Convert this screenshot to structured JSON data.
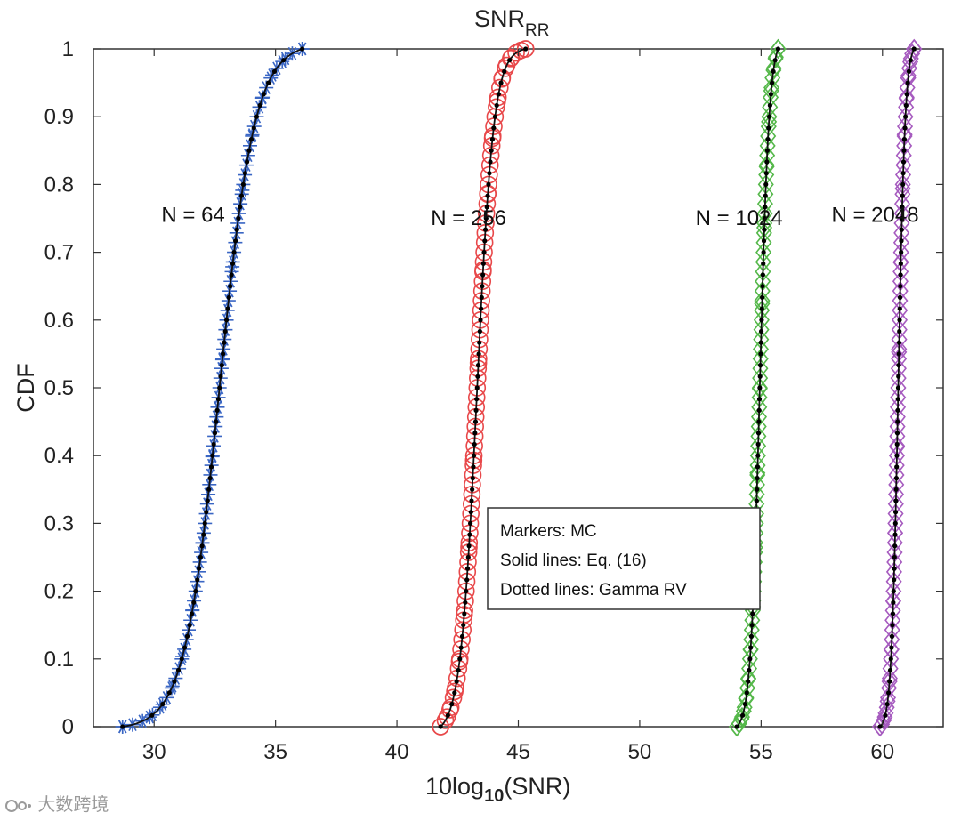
{
  "chart_data": {
    "type": "line",
    "title": "SNR",
    "title_subscript": "RR",
    "xlabel_main": "10log",
    "xlabel_subscript": "10",
    "xlabel_suffix": "(SNR)",
    "ylabel": "CDF",
    "xlim": [
      27.5,
      62.5
    ],
    "ylim": [
      0,
      1
    ],
    "xticks": [
      30,
      35,
      40,
      45,
      50,
      55,
      60
    ],
    "yticks": [
      0,
      0.1,
      0.2,
      0.3,
      0.4,
      0.5,
      0.6,
      0.7,
      0.8,
      0.9,
      1
    ],
    "ytick_labels": [
      "0",
      "0.1",
      "0.2",
      "0.3",
      "0.4",
      "0.5",
      "0.6",
      "0.7",
      "0.8",
      "0.9",
      "1"
    ],
    "xtick_labels": [
      "30",
      "35",
      "40",
      "45",
      "50",
      "55",
      "60"
    ],
    "series": [
      {
        "name": "N = 64",
        "marker": "asterisk",
        "color": "#3a66c4",
        "median": 32.7,
        "scale": 0.72,
        "xmin": 28.7,
        "xmax": 36.1
      },
      {
        "name": "N = 256",
        "marker": "circle",
        "color": "#e8484a",
        "median": 43.3,
        "scale": 0.34,
        "xmin": 41.8,
        "xmax": 45.3
      },
      {
        "name": "N = 1024",
        "marker": "diamond",
        "color": "#55b84a",
        "median": 54.95,
        "scale": 0.19,
        "xmin": 54.0,
        "xmax": 55.7
      },
      {
        "name": "N = 2048",
        "marker": "diamond",
        "color": "#a65bbf",
        "median": 60.65,
        "scale": 0.14,
        "xmin": 59.9,
        "xmax": 61.3
      }
    ],
    "annotations": [
      {
        "text": "N = 64",
        "x": 30.3,
        "y": 0.745
      },
      {
        "text": "N = 256",
        "x": 41.4,
        "y": 0.74
      },
      {
        "text": "N = 1024",
        "x": 52.3,
        "y": 0.74
      },
      {
        "text": "N = 2048",
        "x": 57.9,
        "y": 0.745
      }
    ],
    "legend": {
      "placement": "center-bottom",
      "entries": [
        "Markers: MC",
        "Solid lines: Eq. (16)",
        "Dotted lines: Gamma RV"
      ]
    },
    "grid": false
  },
  "watermark": {
    "text": "大数跨境"
  }
}
